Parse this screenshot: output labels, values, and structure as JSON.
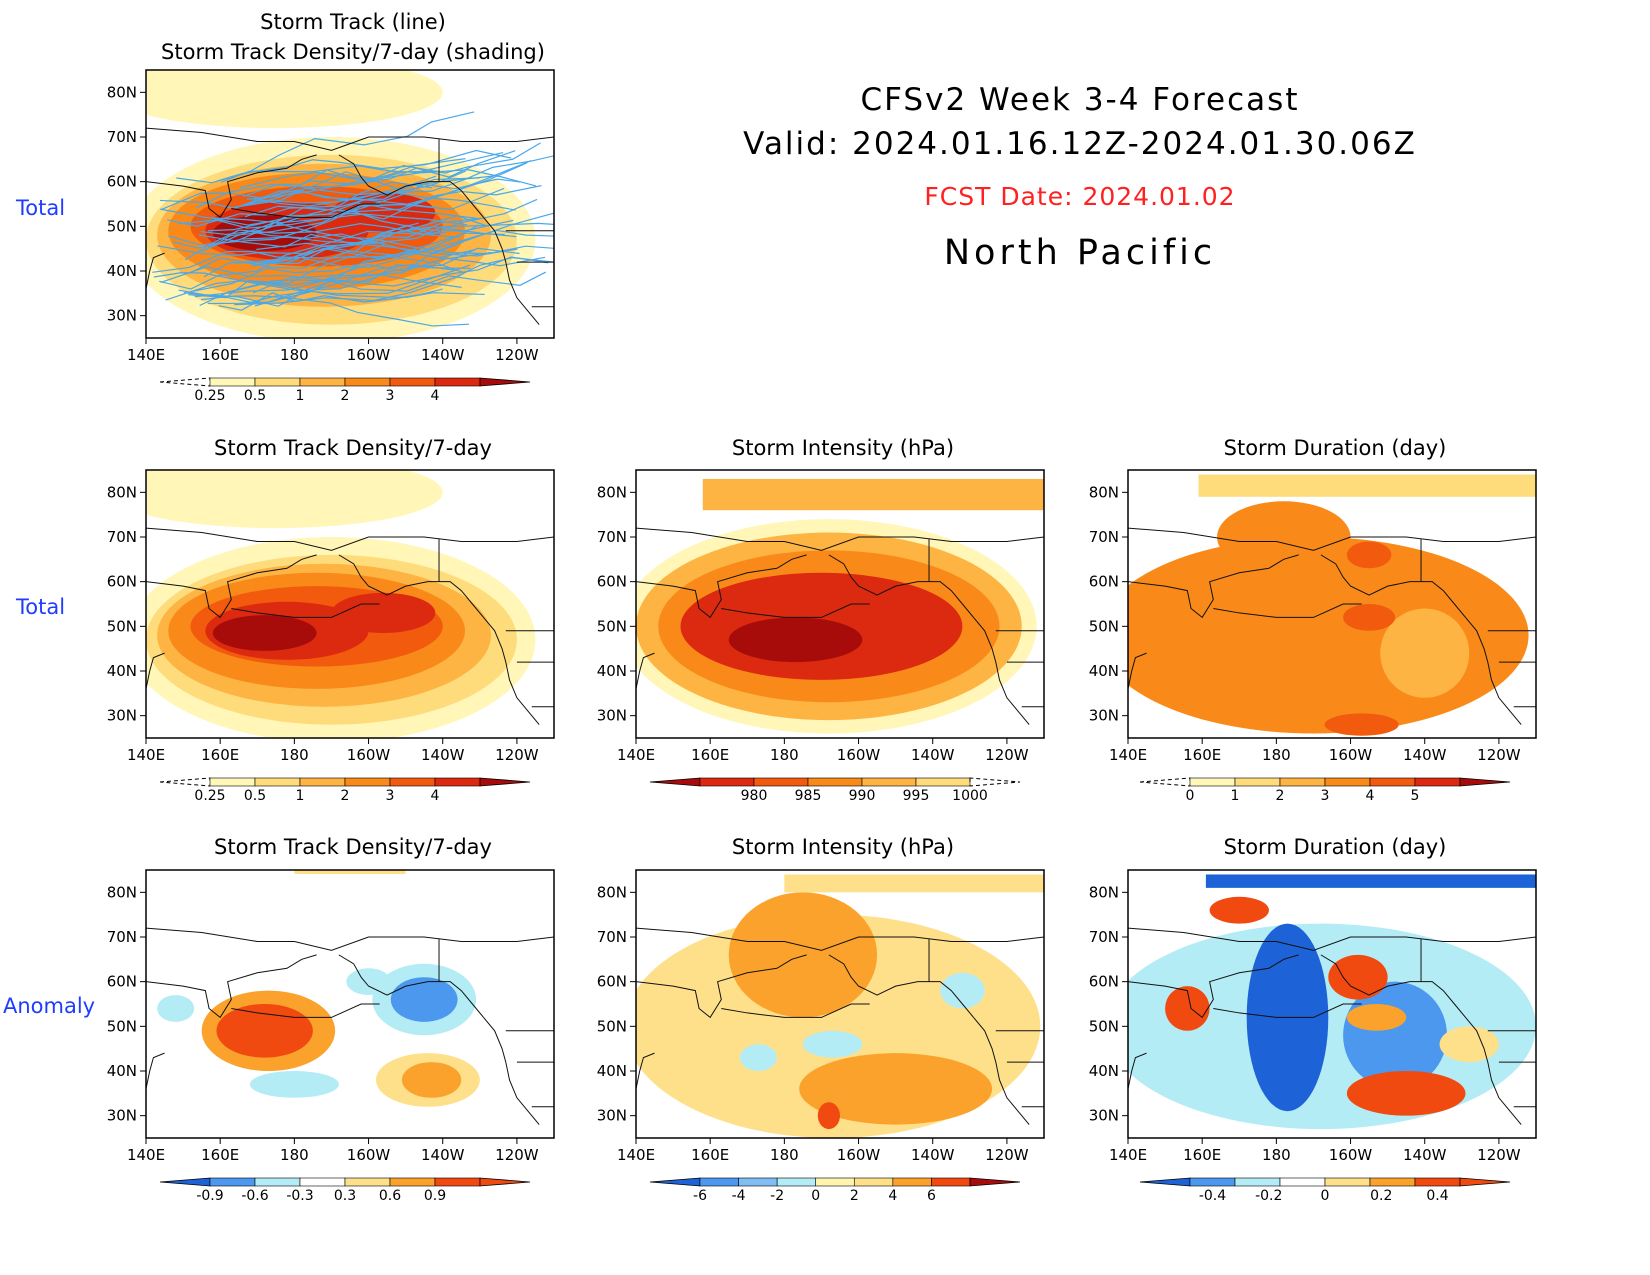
{
  "header": {
    "line1": "CFSv2 Week 3-4 Forecast",
    "line2": "Valid: 2024.01.16.12Z-2024.01.30.06Z",
    "fcst_date": "FCST Date: 2024.01.02",
    "region": "North Pacific"
  },
  "row_labels": {
    "top": "Total",
    "middle": "Total",
    "bottom": "Anomaly"
  },
  "axes": {
    "lat_ticks": [
      "80N",
      "70N",
      "60N",
      "50N",
      "40N",
      "30N"
    ],
    "lon_ticks": [
      "140E",
      "160E",
      "180",
      "160W",
      "140W",
      "120W"
    ]
  },
  "panels": {
    "track_line": {
      "title1": "Storm Track (line)",
      "title2": "Storm Track Density/7-day (shading)",
      "colorbar": [
        "0.25",
        "0.5",
        "1",
        "2",
        "3",
        "4"
      ]
    },
    "density_total": {
      "title": "Storm Track Density/7-day",
      "colorbar": [
        "0.25",
        "0.5",
        "1",
        "2",
        "3",
        "4"
      ]
    },
    "intensity_total": {
      "title": "Storm Intensity (hPa)",
      "colorbar": [
        "980",
        "985",
        "990",
        "995",
        "1000"
      ]
    },
    "duration_total": {
      "title": "Storm Duration (day)",
      "colorbar": [
        "0",
        "1",
        "2",
        "3",
        "4",
        "5"
      ]
    },
    "density_anom": {
      "title": "Storm Track Density/7-day",
      "colorbar": [
        "-0.9",
        "-0.6",
        "-0.3",
        "0.3",
        "0.6",
        "0.9"
      ]
    },
    "intensity_anom": {
      "title": "Storm Intensity (hPa)",
      "colorbar": [
        "-6",
        "-4",
        "-2",
        "0",
        "2",
        "4",
        "6"
      ]
    },
    "duration_anom": {
      "title": "Storm Duration (day)",
      "colorbar": [
        "-0.4",
        "-0.2",
        "0",
        "0.2",
        "0.4"
      ]
    }
  },
  "colors": {
    "seq": [
      "#fff6b8",
      "#fedc7c",
      "#fdb443",
      "#f98a1a",
      "#f25a0e",
      "#dc2a10",
      "#a80c0a"
    ],
    "div": [
      "#1d62d6",
      "#4b98ee",
      "#b4ecf6",
      "#ffffff",
      "#fee08a",
      "#fba22c",
      "#f14a10"
    ],
    "track_line": "#4aa8e8",
    "fcst_date": "#ff2020",
    "row_label": "#1f3cff"
  }
}
